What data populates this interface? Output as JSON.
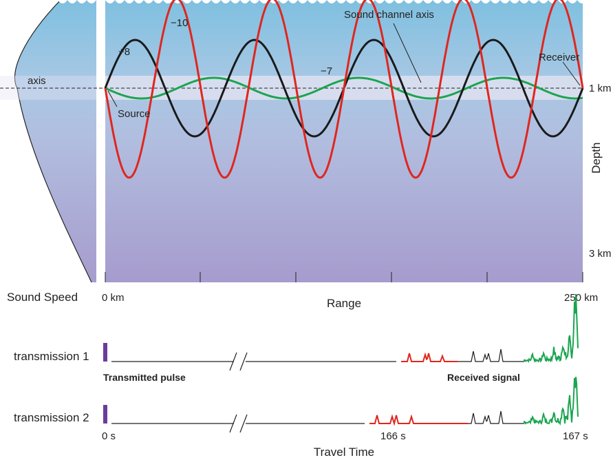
{
  "top_panel": {
    "ray_labels": [
      "+8",
      "−10",
      "−7"
    ],
    "sound_channel_axis": "Sound channel axis",
    "receiver": "Receiver",
    "axis_label": "axis",
    "source": "Source",
    "depth_labels": [
      "1 km",
      "3 km"
    ],
    "depth_title": "Depth",
    "sound_speed_label": "Sound Speed",
    "range_labels": [
      "0 km",
      "250 km"
    ],
    "range_title": "Range"
  },
  "bottom_panel": {
    "transmissions": [
      "transmission 1",
      "transmission 2"
    ],
    "transmitted_pulse": "Transmitted pulse",
    "received_signal": "Received signal",
    "time_labels": [
      "0 s",
      "166 s",
      "167 s"
    ],
    "time_title": "Travel Time"
  }
}
